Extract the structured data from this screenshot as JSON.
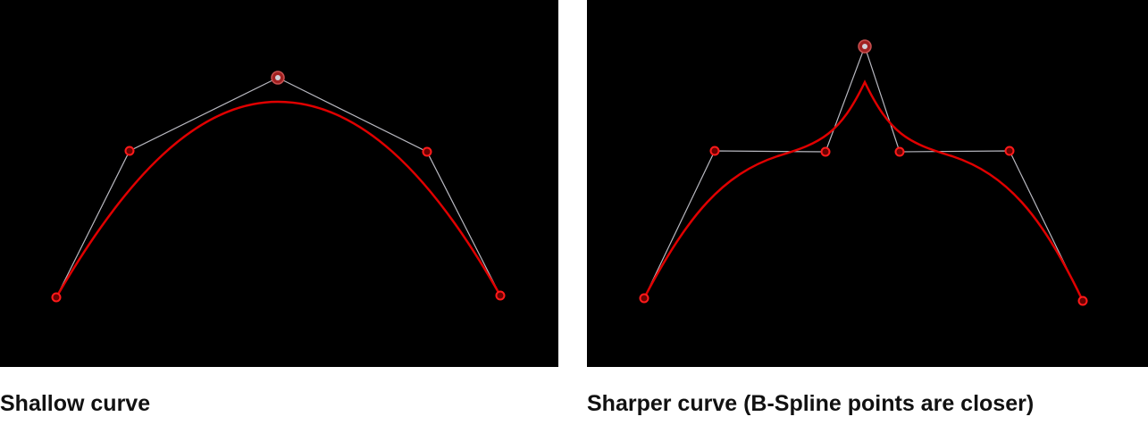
{
  "left": {
    "caption": "Shallow curve"
  },
  "right": {
    "caption": "Sharper curve (B-Spline points are closer)"
  },
  "colors": {
    "background": "#000000",
    "curve": "#e00000",
    "control_line": "#b8b8c0",
    "point": "#cc0000"
  }
}
